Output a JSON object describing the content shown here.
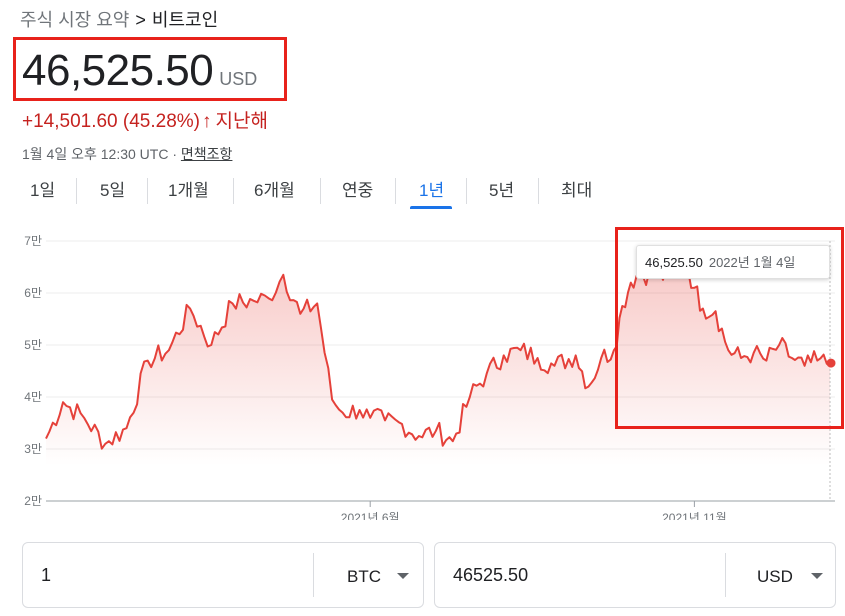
{
  "breadcrumb": {
    "root": "주식 시장 요약",
    "separator": ">",
    "current": "비트코인"
  },
  "price": {
    "value": "46,525.50",
    "currency": "USD"
  },
  "change": {
    "text": "+14,501.60 (45.28%)",
    "arrow": "↑",
    "period": "지난해"
  },
  "meta": {
    "timestamp": "1월 4일 오후 12:30 UTC · ",
    "disclaimer": "면책조항"
  },
  "tabs": [
    "1일",
    "5일",
    "1개월",
    "6개월",
    "연중",
    "1년",
    "5년",
    "최대"
  ],
  "active_tab": "1년",
  "tooltip": {
    "value": "46,525.50",
    "date": "2022년 1월 4일"
  },
  "colors": {
    "accent": "#1a73e8",
    "negative": "#c5221f",
    "line": "#e5413a",
    "highlight": "#e8221b"
  },
  "converter": {
    "left": {
      "amount": "1",
      "unit": "BTC"
    },
    "right": {
      "amount": "46525.50",
      "unit": "USD"
    }
  },
  "chart_data": {
    "type": "area",
    "y_tick_labels": [
      "7만",
      "6만",
      "5만",
      "4만",
      "3만",
      "2만"
    ],
    "ylim": [
      20000,
      70000
    ],
    "x_tick_labels": [
      "2021년 6월",
      "2021년 11월"
    ],
    "x_tick_days": [
      153,
      306
    ],
    "x_range_days": [
      0,
      370
    ],
    "x_start_date": "2021-01-04",
    "grid": true,
    "series": [
      {
        "x": [
          0,
          8,
          18,
          28,
          38,
          48,
          58,
          68,
          78,
          88,
          98,
          105,
          112,
          120,
          128,
          135,
          140,
          148,
          153,
          160,
          168,
          176,
          184,
          192,
          200,
          208,
          216,
          224,
          232,
          240,
          250,
          256,
          262,
          268,
          272,
          276,
          280,
          288,
          296,
          303,
          306,
          310,
          316,
          322,
          328,
          334,
          340,
          346,
          352,
          358,
          364,
          370
        ],
        "y": [
          32000,
          39000,
          36000,
          31000,
          34000,
          47000,
          49000,
          57000,
          50000,
          58000,
          58500,
          59000,
          63500,
          56000,
          58000,
          39500,
          37000,
          37500,
          36000,
          35500,
          34800,
          32500,
          33500,
          31500,
          40000,
          44500,
          48000,
          49000,
          47500,
          46000,
          48000,
          42000,
          47500,
          49000,
          57500,
          62000,
          64000,
          63000,
          63500,
          64500,
          61000,
          57000,
          56500,
          49000,
          47500,
          48500,
          47000,
          50000,
          47500,
          46000,
          47000,
          46525.5
        ]
      }
    ]
  }
}
